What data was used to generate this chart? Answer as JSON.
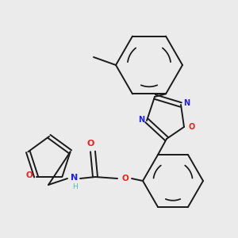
{
  "background_color": "#ebebeb",
  "bond_color": "#1a1a1a",
  "nitrogen_color": "#2020ee",
  "oxygen_color": "#ee2020",
  "nh_color": "#55bbaa",
  "figsize": [
    3.0,
    3.0
  ],
  "dpi": 100,
  "xlim": [
    0,
    300
  ],
  "ylim": [
    0,
    300
  ]
}
